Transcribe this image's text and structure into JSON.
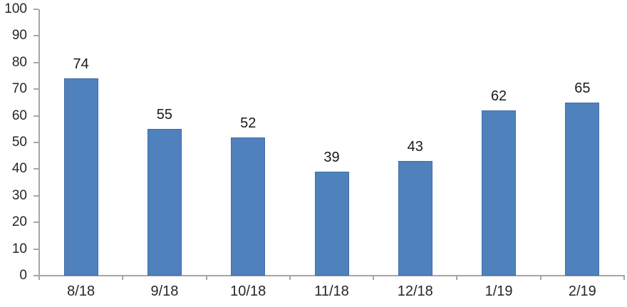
{
  "chart_data": {
    "type": "bar",
    "title": "",
    "xlabel": "",
    "ylabel": "",
    "categories": [
      "8/18",
      "9/18",
      "10/18",
      "11/18",
      "12/18",
      "1/19",
      "2/19"
    ],
    "values": [
      74,
      55,
      52,
      39,
      43,
      62,
      65
    ],
    "data_labels_shown": true,
    "ylim": [
      0,
      100
    ],
    "ytick_step": 10,
    "ytick_labels": [
      "0",
      "10",
      "20",
      "30",
      "40",
      "50",
      "60",
      "70",
      "80",
      "90",
      "100"
    ],
    "grid": false,
    "legend": "none",
    "colors": {
      "bar_fill": "#4f81bd",
      "bar_border": "#3f6daa",
      "axis": "#a6a6a6",
      "label_text": "#262626",
      "background": "#ffffff"
    }
  }
}
